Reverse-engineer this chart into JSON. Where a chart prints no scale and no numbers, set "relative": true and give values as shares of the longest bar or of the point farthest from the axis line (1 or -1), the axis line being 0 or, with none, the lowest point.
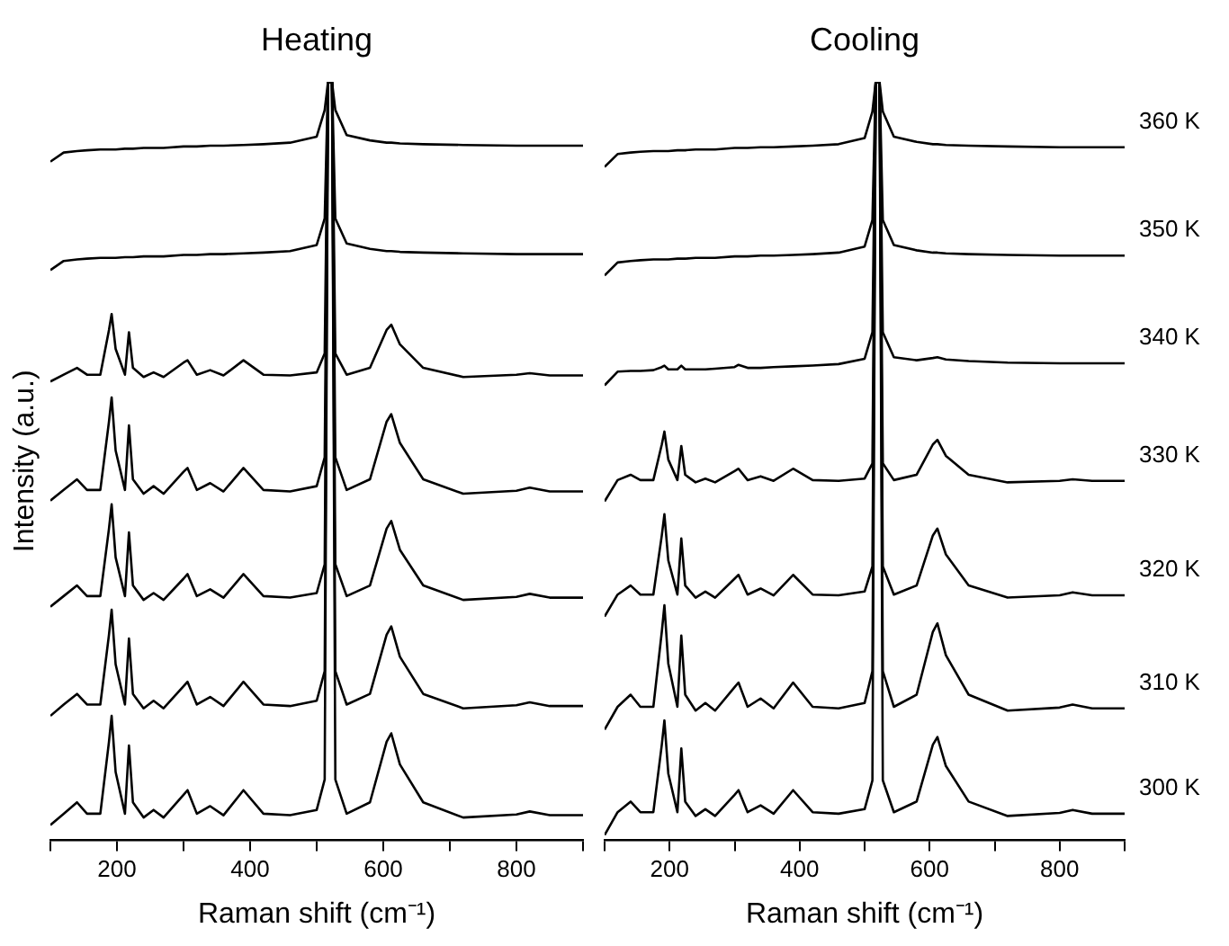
{
  "chart_data": [
    {
      "type": "line",
      "title": "Heating",
      "xlabel": "Raman shift (cm⁻¹)",
      "ylabel": "Intensity (a.u.)",
      "relative": true,
      "legend": false,
      "grid": false,
      "marker": "none",
      "line_style": "solid",
      "xlim": [
        100,
        900
      ],
      "xticks": [
        {
          "value": 100,
          "label": null
        },
        200,
        {
          "value": 300,
          "label": null
        },
        400,
        {
          "value": 500,
          "label": null
        },
        600,
        {
          "value": 700,
          "label": null
        },
        800,
        {
          "value": 900,
          "label": null
        }
      ],
      "x": [
        100,
        120,
        140,
        155,
        175,
        188,
        192,
        198,
        212,
        218,
        224,
        240,
        255,
        270,
        300,
        306,
        320,
        340,
        360,
        390,
        420,
        460,
        500,
        512,
        517,
        520,
        523,
        528,
        545,
        580,
        605,
        612,
        625,
        660,
        720,
        800,
        820,
        850,
        900
      ],
      "series": [
        {
          "color": "#000000",
          "values": [
            0.02,
            0.035,
            0.05,
            0.035,
            0.035,
            0.13,
            0.164,
            0.09,
            0.035,
            0.125,
            0.05,
            0.03,
            0.04,
            0.03,
            0.06,
            0.066,
            0.035,
            0.045,
            0.033,
            0.066,
            0.035,
            0.033,
            0.04,
            0.08,
            1,
            1,
            1,
            0.08,
            0.035,
            0.05,
            0.13,
            0.141,
            0.1,
            0.05,
            0.03,
            0.034,
            0.038,
            0.033,
            0.033
          ]
        },
        {
          "color": "#000000",
          "values": [
            0.164,
            0.179,
            0.193,
            0.179,
            0.179,
            0.271,
            0.304,
            0.232,
            0.179,
            0.266,
            0.193,
            0.174,
            0.184,
            0.174,
            0.203,
            0.209,
            0.179,
            0.189,
            0.177,
            0.209,
            0.179,
            0.177,
            0.184,
            0.223,
            1,
            1,
            1,
            0.223,
            0.179,
            0.193,
            0.271,
            0.282,
            0.242,
            0.193,
            0.174,
            0.178,
            0.182,
            0.177,
            0.177
          ]
        },
        {
          "color": "#000000",
          "values": [
            0.308,
            0.322,
            0.336,
            0.322,
            0.322,
            0.411,
            0.443,
            0.373,
            0.322,
            0.406,
            0.336,
            0.317,
            0.326,
            0.317,
            0.345,
            0.351,
            0.322,
            0.331,
            0.32,
            0.351,
            0.322,
            0.32,
            0.326,
            0.364,
            1,
            1,
            1,
            0.364,
            0.322,
            0.336,
            0.411,
            0.421,
            0.383,
            0.336,
            0.317,
            0.321,
            0.325,
            0.32,
            0.32
          ]
        },
        {
          "color": "#000000",
          "values": [
            0.448,
            0.462,
            0.476,
            0.462,
            0.462,
            0.552,
            0.584,
            0.514,
            0.462,
            0.547,
            0.476,
            0.457,
            0.467,
            0.457,
            0.486,
            0.491,
            0.462,
            0.471,
            0.46,
            0.491,
            0.462,
            0.46,
            0.467,
            0.505,
            1,
            1,
            1,
            0.505,
            0.462,
            0.476,
            0.552,
            0.562,
            0.524,
            0.476,
            0.457,
            0.461,
            0.465,
            0.46,
            0.46
          ]
        },
        {
          "color": "#000000",
          "values": [
            0.605,
            0.614,
            0.623,
            0.614,
            0.614,
            0.673,
            0.694,
            0.648,
            0.614,
            0.67,
            0.623,
            0.611,
            0.617,
            0.611,
            0.63,
            0.633,
            0.614,
            0.62,
            0.613,
            0.633,
            0.614,
            0.613,
            0.617,
            0.642,
            1,
            1,
            1,
            0.642,
            0.614,
            0.623,
            0.673,
            0.68,
            0.654,
            0.623,
            0.611,
            0.614,
            0.616,
            0.613,
            0.613
          ]
        },
        {
          "color": "#000000",
          "values": [
            0.752,
            0.764,
            0.766,
            0.767,
            0.768,
            0.768,
            0.768,
            0.768,
            0.769,
            0.769,
            0.769,
            0.77,
            0.77,
            0.77,
            0.772,
            0.772,
            0.772,
            0.773,
            0.773,
            0.774,
            0.775,
            0.777,
            0.785,
            0.82,
            1,
            1,
            1,
            0.82,
            0.787,
            0.78,
            0.777,
            0.777,
            0.776,
            0.775,
            0.774,
            0.773,
            0.773,
            0.773,
            0.773
          ]
        },
        {
          "color": "#000000",
          "values": [
            0.895,
            0.907,
            0.909,
            0.91,
            0.911,
            0.911,
            0.911,
            0.911,
            0.912,
            0.912,
            0.912,
            0.913,
            0.913,
            0.913,
            0.915,
            0.915,
            0.915,
            0.916,
            0.916,
            0.917,
            0.918,
            0.92,
            0.928,
            0.963,
            1,
            1,
            1,
            0.963,
            0.93,
            0.923,
            0.92,
            0.92,
            0.919,
            0.918,
            0.917,
            0.916,
            0.916,
            0.916,
            0.916
          ]
        }
      ]
    },
    {
      "type": "line",
      "title": "Cooling",
      "xlabel": "Raman shift (cm⁻¹)",
      "relative": true,
      "legend": false,
      "grid": false,
      "marker": "none",
      "line_style": "solid",
      "xlim": [
        100,
        900
      ],
      "xticks": [
        {
          "value": 100,
          "label": null
        },
        200,
        {
          "value": 300,
          "label": null
        },
        400,
        {
          "value": 500,
          "label": null
        },
        600,
        {
          "value": 700,
          "label": null
        },
        800,
        {
          "value": 900,
          "label": null
        }
      ],
      "x": [
        100,
        120,
        140,
        155,
        175,
        188,
        192,
        198,
        212,
        218,
        224,
        240,
        255,
        270,
        300,
        306,
        320,
        340,
        360,
        390,
        420,
        460,
        500,
        512,
        517,
        520,
        523,
        528,
        545,
        580,
        605,
        612,
        625,
        660,
        720,
        800,
        820,
        850,
        900
      ],
      "series": [
        {
          "name": "300 K",
          "color": "#000000",
          "values": [
            0.007,
            0.037,
            0.051,
            0.037,
            0.037,
            0.126,
            0.158,
            0.088,
            0.037,
            0.121,
            0.051,
            0.032,
            0.041,
            0.032,
            0.06,
            0.066,
            0.037,
            0.046,
            0.035,
            0.066,
            0.037,
            0.035,
            0.041,
            0.079,
            1,
            1,
            1,
            0.079,
            0.037,
            0.051,
            0.126,
            0.136,
            0.098,
            0.051,
            0.032,
            0.036,
            0.04,
            0.035,
            0.035
          ]
        },
        {
          "name": "310 K",
          "color": "#000000",
          "values": [
            0.146,
            0.176,
            0.192,
            0.176,
            0.176,
            0.275,
            0.31,
            0.233,
            0.176,
            0.27,
            0.192,
            0.171,
            0.181,
            0.171,
            0.202,
            0.208,
            0.176,
            0.187,
            0.174,
            0.208,
            0.176,
            0.174,
            0.181,
            0.223,
            1,
            1,
            1,
            0.223,
            0.176,
            0.192,
            0.275,
            0.286,
            0.244,
            0.192,
            0.171,
            0.175,
            0.179,
            0.174,
            0.174
          ]
        },
        {
          "name": "320 K",
          "color": "#000000",
          "values": [
            0.295,
            0.324,
            0.336,
            0.324,
            0.324,
            0.402,
            0.43,
            0.369,
            0.324,
            0.398,
            0.336,
            0.32,
            0.328,
            0.32,
            0.345,
            0.35,
            0.324,
            0.332,
            0.323,
            0.35,
            0.324,
            0.323,
            0.328,
            0.361,
            1,
            1,
            1,
            0.361,
            0.324,
            0.336,
            0.402,
            0.411,
            0.377,
            0.336,
            0.32,
            0.323,
            0.327,
            0.323,
            0.323
          ]
        },
        {
          "name": "330 K",
          "color": "#000000",
          "values": [
            0.447,
            0.475,
            0.482,
            0.475,
            0.475,
            0.522,
            0.539,
            0.502,
            0.475,
            0.52,
            0.482,
            0.472,
            0.477,
            0.472,
            0.487,
            0.49,
            0.475,
            0.48,
            0.474,
            0.49,
            0.475,
            0.474,
            0.477,
            0.497,
            1,
            1,
            1,
            0.497,
            0.475,
            0.482,
            0.522,
            0.528,
            0.507,
            0.482,
            0.472,
            0.474,
            0.476,
            0.474,
            0.474
          ]
        },
        {
          "name": "340 K",
          "color": "#000000",
          "values": [
            0.6,
            0.618,
            0.619,
            0.619,
            0.62,
            0.624,
            0.626,
            0.621,
            0.621,
            0.626,
            0.621,
            0.621,
            0.621,
            0.622,
            0.624,
            0.627,
            0.623,
            0.623,
            0.624,
            0.625,
            0.626,
            0.628,
            0.635,
            0.67,
            1,
            1,
            1,
            0.67,
            0.637,
            0.633,
            0.636,
            0.637,
            0.634,
            0.632,
            0.63,
            0.629,
            0.629,
            0.629,
            0.629
          ]
        },
        {
          "name": "350 K",
          "color": "#000000",
          "values": [
            0.745,
            0.762,
            0.764,
            0.765,
            0.766,
            0.766,
            0.766,
            0.766,
            0.767,
            0.767,
            0.767,
            0.768,
            0.768,
            0.768,
            0.77,
            0.77,
            0.77,
            0.771,
            0.771,
            0.772,
            0.773,
            0.775,
            0.783,
            0.818,
            1,
            1,
            1,
            0.818,
            0.785,
            0.778,
            0.775,
            0.775,
            0.774,
            0.773,
            0.772,
            0.771,
            0.771,
            0.771,
            0.771
          ]
        },
        {
          "name": "360 K",
          "color": "#000000",
          "values": [
            0.888,
            0.905,
            0.907,
            0.908,
            0.909,
            0.909,
            0.909,
            0.909,
            0.91,
            0.91,
            0.91,
            0.911,
            0.911,
            0.911,
            0.913,
            0.913,
            0.913,
            0.914,
            0.914,
            0.915,
            0.916,
            0.918,
            0.926,
            0.961,
            1,
            1,
            1,
            0.961,
            0.928,
            0.921,
            0.918,
            0.918,
            0.917,
            0.916,
            0.915,
            0.914,
            0.914,
            0.914,
            0.914
          ]
        }
      ]
    }
  ]
}
